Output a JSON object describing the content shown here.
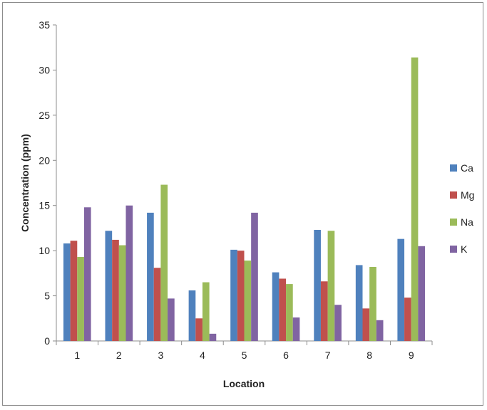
{
  "chart_data": {
    "type": "bar",
    "title": "",
    "xlabel": "Location",
    "ylabel": "Concentration (ppm)",
    "ylim": [
      0,
      35
    ],
    "yticks": [
      0,
      5,
      10,
      15,
      20,
      25,
      30,
      35
    ],
    "categories": [
      "1",
      "2",
      "3",
      "4",
      "5",
      "6",
      "7",
      "8",
      "9"
    ],
    "grid": false,
    "legend_position": "right",
    "series": [
      {
        "name": "Ca",
        "color": "#4f81bd",
        "values": [
          10.8,
          12.2,
          14.2,
          5.6,
          10.1,
          7.6,
          12.3,
          8.4,
          11.3
        ]
      },
      {
        "name": "Mg",
        "color": "#c0504d",
        "values": [
          11.1,
          11.2,
          8.1,
          2.5,
          10.0,
          6.9,
          6.6,
          3.6,
          4.8
        ]
      },
      {
        "name": "Na",
        "color": "#9bbb59",
        "values": [
          9.3,
          10.6,
          17.3,
          6.5,
          8.9,
          6.3,
          12.2,
          8.2,
          31.4
        ]
      },
      {
        "name": "K",
        "color": "#8064a2",
        "values": [
          14.8,
          15.0,
          4.7,
          0.8,
          14.2,
          2.6,
          4.0,
          2.3,
          10.5
        ]
      }
    ]
  }
}
